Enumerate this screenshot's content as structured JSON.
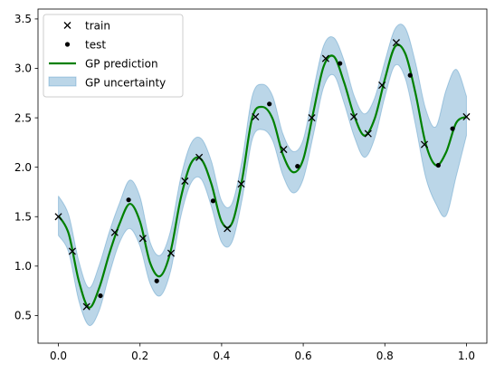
{
  "chart_data": {
    "type": "line",
    "title": "",
    "xlabel": "",
    "ylabel": "",
    "xlim": [
      -0.05,
      1.05
    ],
    "ylim": [
      0.22,
      3.6
    ],
    "x_ticks": [
      0.0,
      0.2,
      0.4,
      0.6,
      0.8,
      1.0
    ],
    "x_tick_labels": [
      "0.0",
      "0.2",
      "0.4",
      "0.6",
      "0.8",
      "1.0"
    ],
    "y_ticks": [
      0.5,
      1.0,
      1.5,
      2.0,
      2.5,
      3.0,
      3.5
    ],
    "y_tick_labels": [
      "0.5",
      "1.0",
      "1.5",
      "2.0",
      "2.5",
      "3.0",
      "3.5"
    ],
    "grid": false,
    "legend_position": "top-left",
    "colors": {
      "train": "#000000",
      "test": "#000000",
      "prediction": "#008000",
      "uncertainty_fill": "#1f77b4"
    },
    "series": [
      {
        "name": "train",
        "kind": "scatter",
        "marker": "x",
        "x": [
          0.0,
          0.034,
          0.069,
          0.138,
          0.207,
          0.276,
          0.31,
          0.345,
          0.414,
          0.448,
          0.483,
          0.552,
          0.621,
          0.655,
          0.724,
          0.759,
          0.793,
          0.828,
          0.897,
          1.0
        ],
        "y": [
          1.5,
          1.15,
          0.59,
          1.34,
          1.28,
          1.13,
          1.86,
          2.1,
          1.38,
          1.83,
          2.51,
          2.18,
          2.5,
          3.1,
          2.51,
          2.34,
          2.83,
          3.26,
          2.23,
          2.51
        ]
      },
      {
        "name": "test",
        "kind": "scatter",
        "marker": "dot",
        "x": [
          0.103,
          0.172,
          0.241,
          0.379,
          0.517,
          0.586,
          0.69,
          0.862,
          0.931,
          0.966
        ],
        "y": [
          0.7,
          1.67,
          0.85,
          1.66,
          2.64,
          2.01,
          3.05,
          2.93,
          2.02,
          2.39
        ]
      },
      {
        "name": "GP prediction",
        "kind": "line",
        "x": [
          0.0,
          0.025,
          0.05,
          0.075,
          0.1,
          0.125,
          0.15,
          0.175,
          0.2,
          0.225,
          0.25,
          0.275,
          0.3,
          0.325,
          0.35,
          0.375,
          0.4,
          0.425,
          0.45,
          0.475,
          0.5,
          0.525,
          0.55,
          0.575,
          0.6,
          0.625,
          0.65,
          0.675,
          0.7,
          0.725,
          0.75,
          0.775,
          0.8,
          0.825,
          0.85,
          0.875,
          0.9,
          0.925,
          0.95,
          0.975,
          1.0
        ],
        "y": [
          1.51,
          1.33,
          0.85,
          0.58,
          0.78,
          1.13,
          1.43,
          1.63,
          1.45,
          1.03,
          0.9,
          1.15,
          1.69,
          2.04,
          2.08,
          1.83,
          1.45,
          1.43,
          1.87,
          2.5,
          2.61,
          2.49,
          2.13,
          1.95,
          2.08,
          2.56,
          3.02,
          3.12,
          2.86,
          2.52,
          2.32,
          2.49,
          2.89,
          3.22,
          3.15,
          2.75,
          2.24,
          2.02,
          2.15,
          2.45,
          2.51
        ],
        "band_lower": [
          1.31,
          1.14,
          0.65,
          0.4,
          0.55,
          0.92,
          1.24,
          1.38,
          1.2,
          0.82,
          0.7,
          0.95,
          1.5,
          1.84,
          1.88,
          1.6,
          1.24,
          1.24,
          1.67,
          2.28,
          2.38,
          2.27,
          1.92,
          1.74,
          1.88,
          2.33,
          2.81,
          2.93,
          2.65,
          2.31,
          2.1,
          2.29,
          2.71,
          3.03,
          2.9,
          2.43,
          1.9,
          1.63,
          1.51,
          1.91,
          2.32
        ],
        "band_upper": [
          1.71,
          1.52,
          1.05,
          0.78,
          1.01,
          1.35,
          1.64,
          1.87,
          1.7,
          1.24,
          1.11,
          1.36,
          1.9,
          2.24,
          2.29,
          2.06,
          1.66,
          1.63,
          2.07,
          2.72,
          2.84,
          2.72,
          2.34,
          2.16,
          2.28,
          2.78,
          3.23,
          3.31,
          3.08,
          2.72,
          2.54,
          2.7,
          3.07,
          3.4,
          3.41,
          3.06,
          2.59,
          2.41,
          2.78,
          2.99,
          2.72
        ]
      }
    ],
    "legend": [
      {
        "label": "train",
        "kind": "x-marker"
      },
      {
        "label": "test",
        "kind": "dot-marker"
      },
      {
        "label": "GP prediction",
        "kind": "line"
      },
      {
        "label": "GP uncertainty",
        "kind": "band"
      }
    ]
  }
}
